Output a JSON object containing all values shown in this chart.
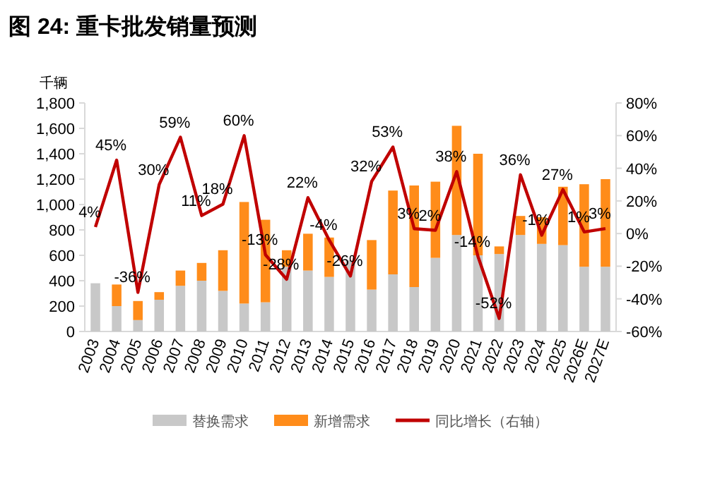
{
  "chart_data": {
    "type": "bar",
    "title": "图 24: 重卡批发销量预测",
    "ylabel": "千辆",
    "stacked": true,
    "legend": "bottom",
    "grid": false,
    "categories": [
      "2003",
      "2004",
      "2005",
      "2006",
      "2007",
      "2008",
      "2009",
      "2010",
      "2011",
      "2012",
      "2013",
      "2014",
      "2015",
      "2016",
      "2017",
      "2018",
      "2019",
      "2020",
      "2021",
      "2022",
      "2023",
      "2024",
      "2025",
      "2026E",
      "2027E"
    ],
    "ylim": [
      0,
      1800
    ],
    "yticks": [
      0,
      200,
      400,
      600,
      800,
      {
        "value": 1000,
        "label": "1,000"
      },
      {
        "value": 1200,
        "label": "1,200"
      },
      {
        "value": 1400,
        "label": "1,400"
      },
      {
        "value": 1600,
        "label": "1,600"
      },
      {
        "value": 1800,
        "label": "1,800"
      }
    ],
    "y2lim": [
      -60,
      80
    ],
    "y2ticks": [
      {
        "value": -60,
        "label": "-60%"
      },
      {
        "value": -40,
        "label": "-40%"
      },
      {
        "value": -20,
        "label": "-20%"
      },
      {
        "value": 0,
        "label": "0%"
      },
      {
        "value": 20,
        "label": "20%"
      },
      {
        "value": 40,
        "label": "40%"
      },
      {
        "value": 60,
        "label": "60%"
      },
      {
        "value": 80,
        "label": "80%"
      }
    ],
    "series": [
      {
        "name": "替换需求",
        "color": "#c8c8c8",
        "values": [
          380,
          200,
          90,
          250,
          360,
          400,
          320,
          220,
          230,
          510,
          480,
          430,
          560,
          330,
          450,
          350,
          580,
          760,
          600,
          610,
          760,
          690,
          680,
          510,
          510
        ]
      },
      {
        "name": "新增需求",
        "color": "#ff8c1a",
        "values": [
          null,
          170,
          150,
          60,
          120,
          140,
          320,
          800,
          650,
          130,
          290,
          310,
          null,
          390,
          660,
          800,
          600,
          860,
          800,
          60,
          150,
          210,
          460,
          650,
          690
        ]
      },
      {
        "name": "同比增长（右轴）",
        "type": "line",
        "axis": "y2",
        "color": "#c00000",
        "values": [
          4,
          45,
          -36,
          30,
          59,
          11,
          18,
          60,
          -13,
          -28,
          22,
          -4,
          -26,
          32,
          53,
          3,
          2,
          38,
          -14,
          -52,
          36,
          -1,
          27,
          1,
          3
        ],
        "value_labels": [
          "4%",
          "45%",
          "-36%",
          "30%",
          "59%",
          "11%",
          "18%",
          "60%",
          "-13%",
          "-28%",
          "22%",
          "-4%",
          "-26%",
          "32%",
          "53%",
          "3%",
          "2%",
          "38%",
          "-14%",
          "-52%",
          "36%",
          "-1%",
          "27%",
          "1%",
          "3%"
        ]
      }
    ]
  }
}
